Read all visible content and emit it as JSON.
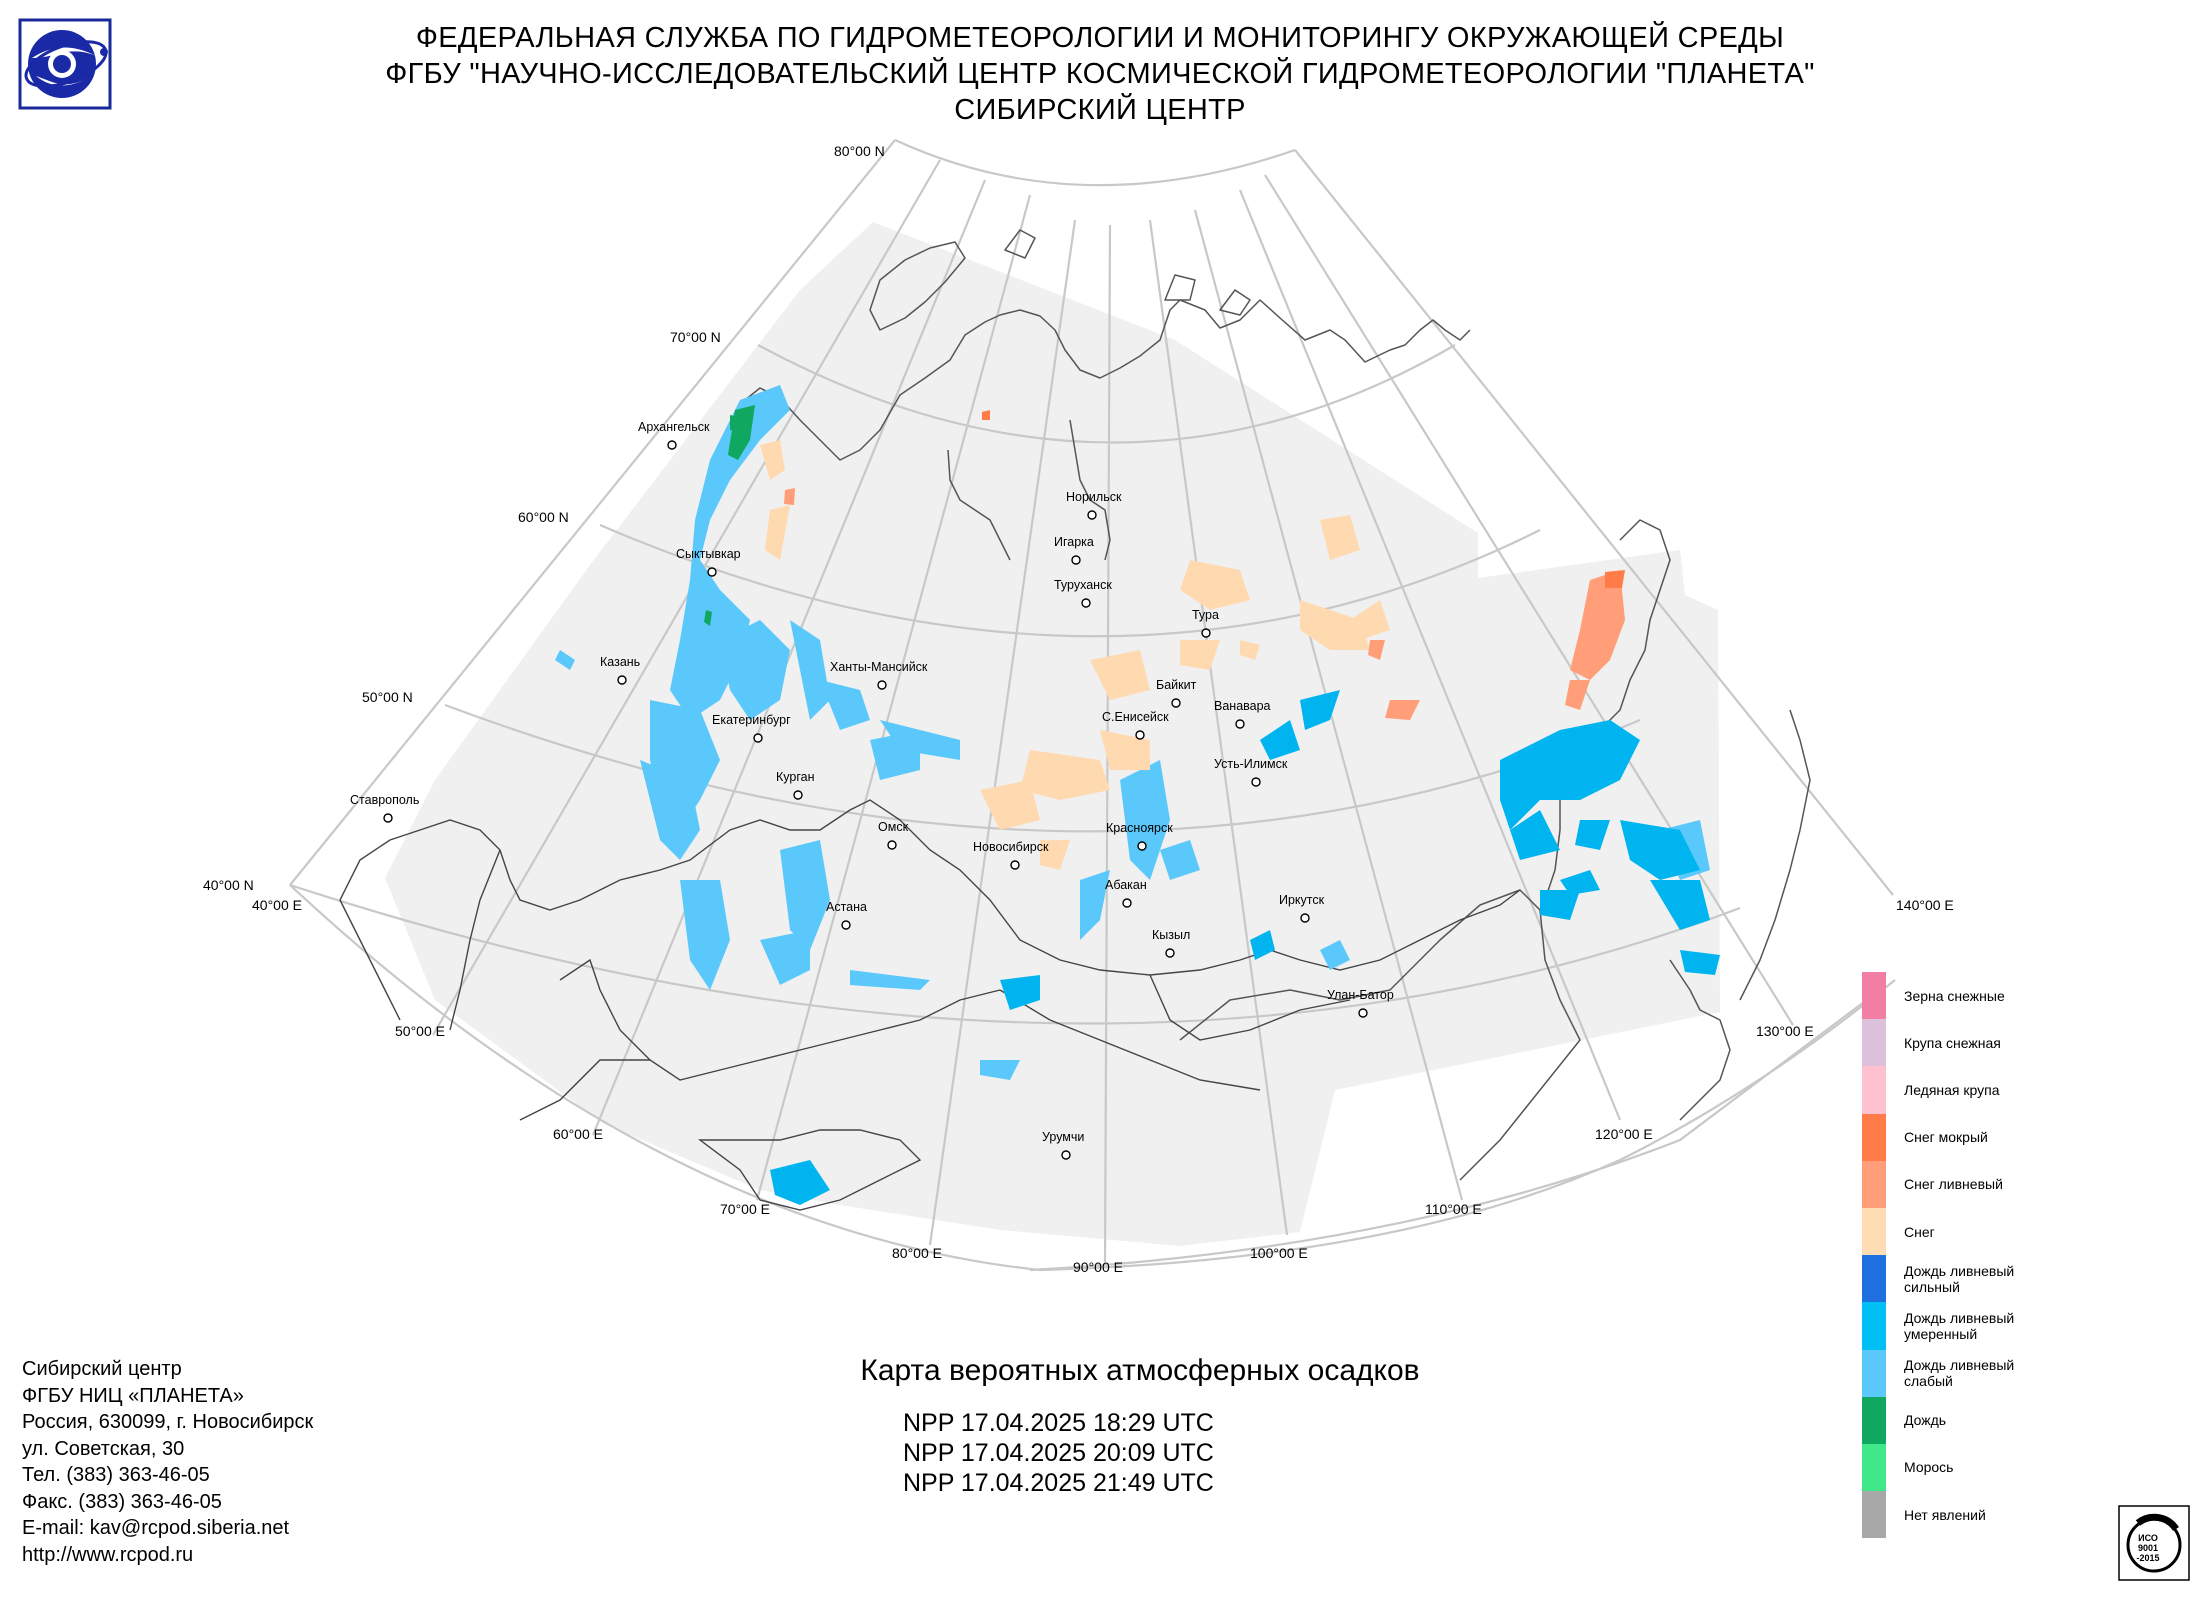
{
  "header": {
    "line1": "ФЕДЕРАЛЬНАЯ СЛУЖБА ПО ГИДРОМЕТЕОРОЛОГИИ И МОНИТОРИНГУ ОКРУЖАЮЩЕЙ СРЕДЫ",
    "line2": "ФГБУ \"НАУЧНО-ИССЛЕДОВАТЕЛЬСКИЙ ЦЕНТР КОСМИЧЕСКОЙ ГИДРОМЕТЕОРОЛОГИИ \"ПЛАНЕТА\"",
    "line3": "СИБИРСКИЙ ЦЕНТР"
  },
  "map": {
    "latitude_labels": [
      "80°00 N",
      "70°00 N",
      "60°00 N",
      "50°00 N",
      "40°00 N"
    ],
    "longitude_labels": [
      "40°00 E",
      "50°00 E",
      "60°00 E",
      "70°00 E",
      "80°00 E",
      "90°00 E",
      "100°00 E",
      "110°00 E",
      "120°00 E",
      "130°00 E",
      "140°00 E"
    ],
    "cities": [
      "Архангельск",
      "Сыктывкар",
      "Казань",
      "Ставрополь",
      "Екатеринбург",
      "Курган",
      "Ханты-Мансийск",
      "Омск",
      "Астана",
      "Новосибирск",
      "Норильск",
      "Игарка",
      "Туруханск",
      "Тура",
      "Байкит",
      "Ванавара",
      "С.Енисейск",
      "Усть-Илимск",
      "Красноярск",
      "Абакан",
      "Кызыл",
      "Иркутск",
      "Улан-Батор",
      "Урумчи"
    ],
    "colors": {
      "no_data_area": "#f0f0f0",
      "rain_light": "#5ac8fa",
      "rain_moderate": "#00b4f0",
      "rain": "#1aa864",
      "snow": "#ffd9b0",
      "snow_shower": "#ff9e78",
      "snow_wet": "#ff7c48"
    }
  },
  "legend": [
    {
      "label": "Зерна снежные",
      "color": "#f27ea4"
    },
    {
      "label": "Крупа снежная",
      "color": "#dcc0dc"
    },
    {
      "label": "Ледяная крупа",
      "color": "#ffc0d0"
    },
    {
      "label": "Снег мокрый",
      "color": "#ff7c48"
    },
    {
      "label": "Снег ливневый",
      "color": "#ff9e78"
    },
    {
      "label": "Снег",
      "color": "#ffdcb4"
    },
    {
      "label": "Дождь ливневый\nсильный",
      "color": "#1f6fe0"
    },
    {
      "label": "Дождь ливневый\nумеренный",
      "color": "#00bff5"
    },
    {
      "label": "Дождь ливневый\nслабый",
      "color": "#5ac8fa"
    },
    {
      "label": "Дождь",
      "color": "#10a860"
    },
    {
      "label": "Морось",
      "color": "#40e88a"
    },
    {
      "label": "Нет явлений",
      "color": "#a8a8a8"
    }
  ],
  "title": "Карта вероятных атмосферных осадков",
  "passes": [
    "NPP 17.04.2025  18:29 UTC",
    "NPP 17.04.2025  20:09 UTC",
    "NPP 17.04.2025  21:49 UTC"
  ],
  "contacts": [
    "Сибирский центр",
    "ФГБУ НИЦ «ПЛАНЕТА»",
    "Россия, 630099, г. Новосибирск",
    "ул. Советская, 30",
    "Тел. (383) 363-46-05",
    "Факс. (383) 363-46-05",
    "E-mail: kav@rcpod.siberia.net",
    "http://www.rcpod.ru"
  ],
  "iso_badge": [
    "ИСО",
    "9001",
    "-2015"
  ]
}
